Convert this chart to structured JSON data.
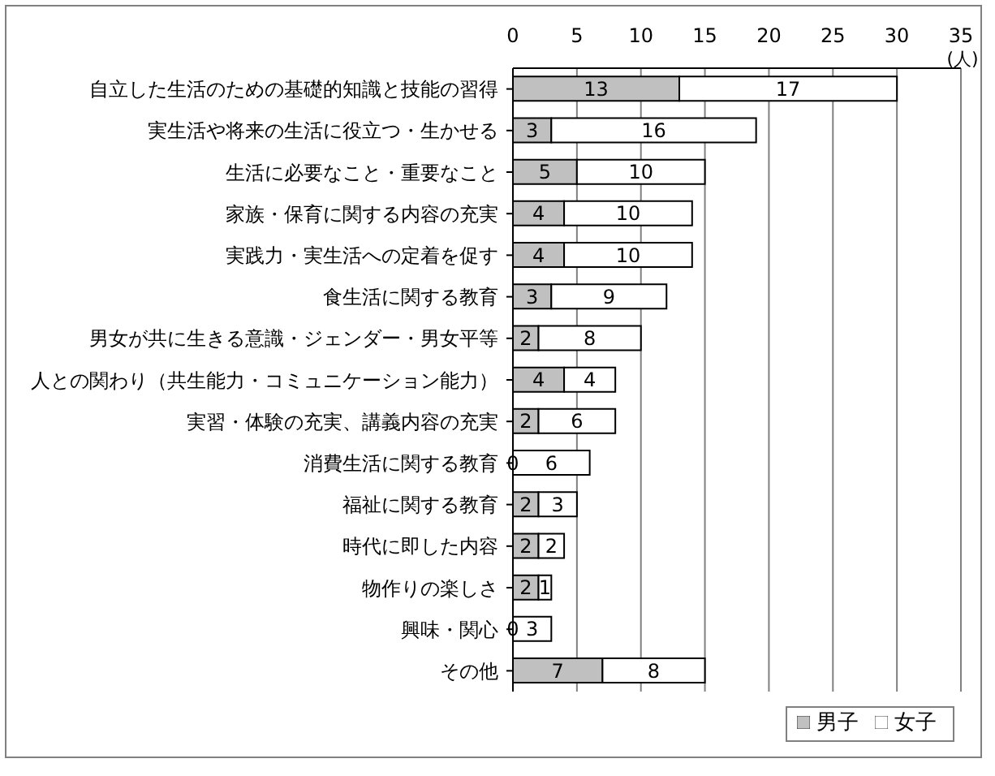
{
  "chart_data": {
    "type": "bar",
    "orientation": "horizontal",
    "stacked": true,
    "xlabel": "(人)",
    "categories": [
      "自立した生活のための基礎的知識と技能の習得",
      "実生活や将来の生活に役立つ・生かせる",
      "生活に必要なこと・重要なこと",
      "家族・保育に関する内容の充実",
      "実践力・実生活への定着を促す",
      "食生活に関する教育",
      "男女が共に生きる意識・ジェンダー・男女平等",
      "人との関わり（共生能力・コミュニケーション能力）",
      "実習・体験の充実、講義内容の充実",
      "消費生活に関する教育",
      "福祉に関する教育",
      "時代に即した内容",
      "物作りの楽しさ",
      "興味・関心",
      "その他"
    ],
    "series": [
      {
        "name": "男子",
        "color": "#c0c0c0",
        "values": [
          13,
          3,
          5,
          4,
          4,
          3,
          2,
          4,
          2,
          0,
          2,
          2,
          2,
          0,
          7
        ]
      },
      {
        "name": "女子",
        "color": "#ffffff",
        "values": [
          17,
          16,
          10,
          10,
          10,
          9,
          8,
          4,
          6,
          6,
          3,
          2,
          1,
          3,
          8
        ]
      }
    ],
    "xlim": [
      0,
      35
    ],
    "xticks": [
      0,
      5,
      10,
      15,
      20,
      25,
      30,
      35
    ],
    "grid": "x",
    "legend": "bottom right",
    "data_labels": true
  }
}
